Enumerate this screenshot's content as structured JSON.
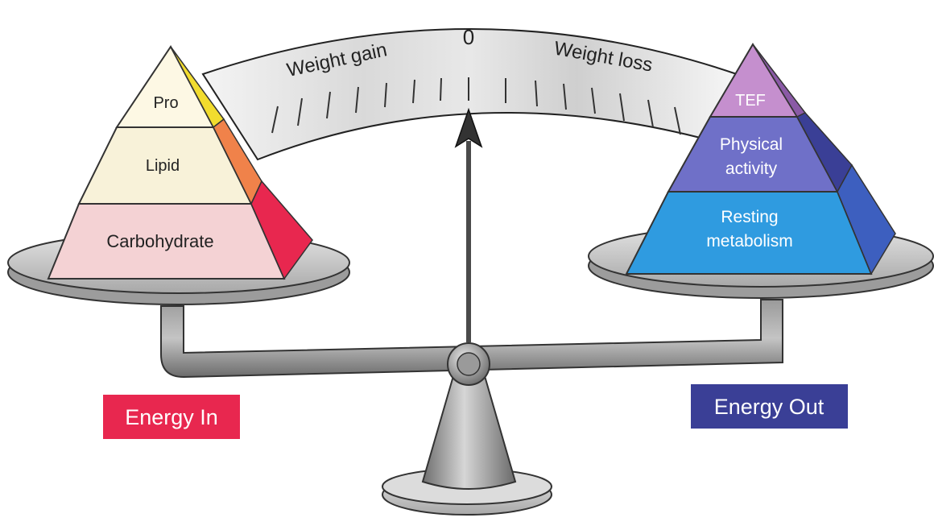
{
  "scale_dial": {
    "zero_label": "0",
    "left_label": "Weight gain",
    "right_label": "Weight loss"
  },
  "energy_in": {
    "label": "Energy In",
    "layers": [
      "Pro",
      "Lipid",
      "Carbohydrate"
    ]
  },
  "energy_out": {
    "label": "Energy Out",
    "layers": [
      {
        "line1": "TEF",
        "line2": ""
      },
      {
        "line1": "Physical",
        "line2": "activity"
      },
      {
        "line1": "Resting",
        "line2": "metabolism"
      }
    ]
  },
  "colors": {
    "energy_in_box": "#e8274f",
    "energy_out_box": "#3a3f96",
    "carb_face": "#f4d2d4",
    "lipid_face": "#f8f2d9",
    "pro_face": "#fdf8e4",
    "tef_face": "#c58fce",
    "activity_face": "#6f70c8",
    "resting_face": "#2f9be0",
    "metal": "#8a8a8a"
  }
}
